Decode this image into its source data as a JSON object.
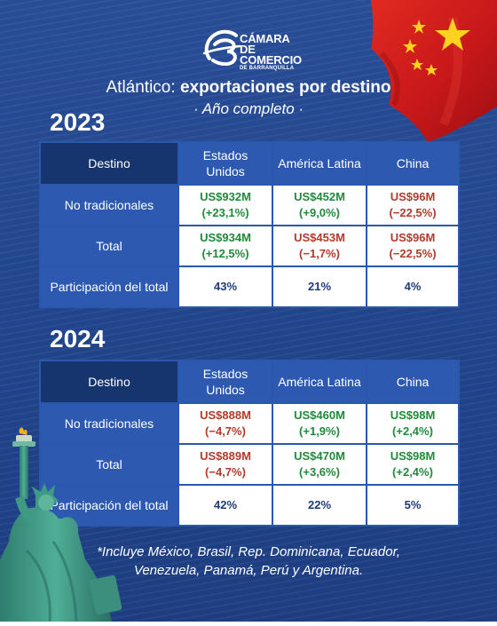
{
  "header": {
    "logo_lines": [
      "CÁMARA DE",
      "COMERCIO",
      "DE BARRANQUILLA"
    ],
    "title_prefix": "Atlántico: ",
    "title_bold": "exportaciones por destino",
    "subtitle": "· Año completo ·"
  },
  "colors": {
    "increase": "#1f8a3a",
    "decrease": "#b23a2b",
    "header_dark": "#16356e",
    "header": "#2d5ab0",
    "background": "#23478f"
  },
  "tables": [
    {
      "year": "2023",
      "columns": [
        "Destino",
        "Estados Unidos",
        "América Latina",
        "China"
      ],
      "rows": [
        {
          "label": "No tradicionales",
          "cells": [
            {
              "value": "US$932M",
              "change": "(+23,1%)",
              "trend": "up"
            },
            {
              "value": "US$452M",
              "change": "(+9,0%)",
              "trend": "up"
            },
            {
              "value": "US$96M",
              "change": "(−22,5%)",
              "trend": "down"
            }
          ]
        },
        {
          "label": "Total",
          "cells": [
            {
              "value": "US$934M",
              "change": "(+12,5%)",
              "trend": "up"
            },
            {
              "value": "US$453M",
              "change": "(−1,7%)",
              "trend": "down"
            },
            {
              "value": "US$96M",
              "change": "(−22,5%)",
              "trend": "down"
            }
          ]
        },
        {
          "label": "Participación del total",
          "cells": [
            {
              "value": "43%"
            },
            {
              "value": "21%"
            },
            {
              "value": "4%"
            }
          ]
        }
      ]
    },
    {
      "year": "2024",
      "columns": [
        "Destino",
        "Estados Unidos",
        "América Latina",
        "China"
      ],
      "rows": [
        {
          "label": "No tradicionales",
          "cells": [
            {
              "value": "US$888M",
              "change": "(−4,7%)",
              "trend": "down"
            },
            {
              "value": "US$460M",
              "change": "(+1,9%)",
              "trend": "up"
            },
            {
              "value": "US$98M",
              "change": "(+2,4%)",
              "trend": "up"
            }
          ]
        },
        {
          "label": "Total",
          "cells": [
            {
              "value": "US$889M",
              "change": "(−4,7%)",
              "trend": "down"
            },
            {
              "value": "US$470M",
              "change": "(+3,6%)",
              "trend": "up"
            },
            {
              "value": "US$98M",
              "change": "(+2,4%)",
              "trend": "up"
            }
          ]
        },
        {
          "label": "Participación del total",
          "cells": [
            {
              "value": "42%"
            },
            {
              "value": "22%"
            },
            {
              "value": "5%"
            }
          ]
        }
      ]
    }
  ],
  "footnote": {
    "line1": "*Incluye México, Brasil, Rep. Dominicana, Ecuador,",
    "line2": "Venezuela, Panamá, Perú y Argentina."
  },
  "images": {
    "flag": "china-flag",
    "statue": "statue-of-liberty"
  }
}
